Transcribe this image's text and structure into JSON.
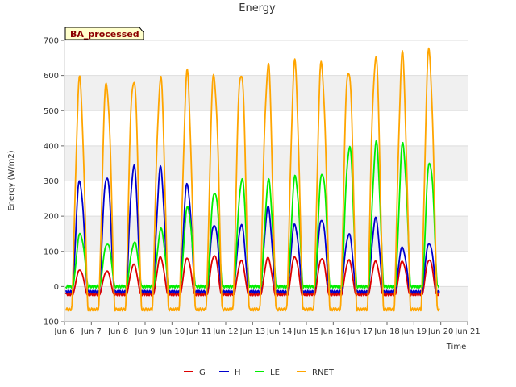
{
  "chart_data": {
    "type": "line",
    "title": "Energy",
    "xlabel": "Time",
    "ylabel": "Energy (W/m2)",
    "badge": "BA_processed",
    "xlim": [
      6,
      21
    ],
    "ylim": [
      -100,
      700
    ],
    "x_ticks": [
      {
        "value": 6,
        "label": "Jun 6"
      },
      {
        "value": 7,
        "label": "Jun 7"
      },
      {
        "value": 8,
        "label": "Jun 8"
      },
      {
        "value": 9,
        "label": "Jun 9"
      },
      {
        "value": 10,
        "label": "Jun 10"
      },
      {
        "value": 11,
        "label": "Jun 11"
      },
      {
        "value": 12,
        "label": "Jun 12"
      },
      {
        "value": 13,
        "label": "Jun 13"
      },
      {
        "value": 14,
        "label": "Jun 14"
      },
      {
        "value": 15,
        "label": "Jun 15"
      },
      {
        "value": 16,
        "label": "Jun 16"
      },
      {
        "value": 17,
        "label": "Jun 17"
      },
      {
        "value": 18,
        "label": "Jun 18"
      },
      {
        "value": 19,
        "label": "Jun 19"
      },
      {
        "value": 20,
        "label": "Jun 20"
      },
      {
        "value": 21,
        "label": "Jun 21"
      }
    ],
    "y_ticks": [
      -100,
      0,
      100,
      200,
      300,
      400,
      500,
      600,
      700
    ],
    "grid": true,
    "background_bands": true,
    "legend_position": "bottom",
    "series": [
      {
        "name": "G",
        "color": "#dd0000",
        "night": -22,
        "rise": 0.27,
        "set": 0.78,
        "peaks": [
          48,
          45,
          62,
          82,
          82,
          90,
          73,
          80,
          85,
          82,
          75,
          70,
          72,
          78
        ]
      },
      {
        "name": "H",
        "color": "#0000cc",
        "night": -15,
        "rise": 0.25,
        "set": 0.8,
        "peaks": [
          300,
          320,
          340,
          330,
          290,
          180,
          175,
          220,
          175,
          195,
          150,
          190,
          110,
          125
        ]
      },
      {
        "name": "LE",
        "color": "#00ee00",
        "night": 0,
        "rise": 0.27,
        "set": 0.82,
        "peaks": [
          150,
          125,
          125,
          160,
          225,
          275,
          305,
          295,
          310,
          330,
          400,
          400,
          400,
          360
        ]
      },
      {
        "name": "RNET",
        "color": "#ffa500",
        "night": -65,
        "rise": 0.22,
        "set": 0.82,
        "peaks": [
          578,
          580,
          600,
          585,
          595,
          600,
          622,
          625,
          622,
          632,
          630,
          650,
          645,
          665
        ]
      }
    ],
    "day_start": 6.05,
    "day_count": 14
  }
}
